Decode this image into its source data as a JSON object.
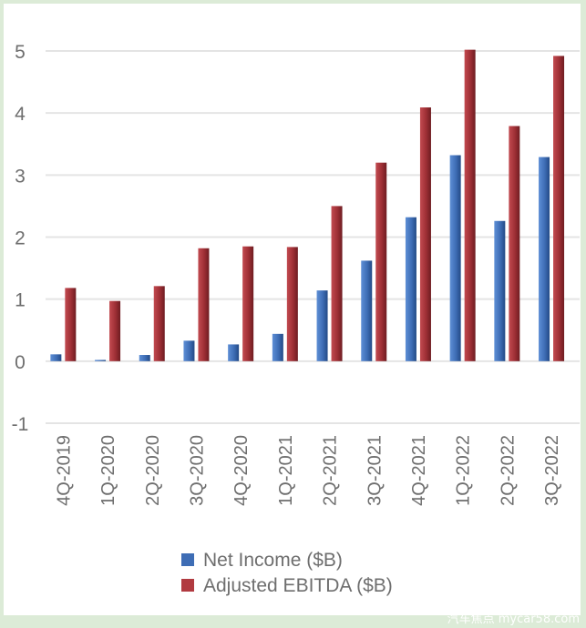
{
  "chart_data": {
    "type": "bar",
    "categories": [
      "4Q-2019",
      "1Q-2020",
      "2Q-2020",
      "3Q-2020",
      "4Q-2020",
      "1Q-2021",
      "2Q-2021",
      "3Q-2021",
      "4Q-2021",
      "1Q-2022",
      "2Q-2022",
      "3Q-2022"
    ],
    "series": [
      {
        "name": "Net Income ($B)",
        "values": [
          0.11,
          0.02,
          0.1,
          0.33,
          0.27,
          0.44,
          1.14,
          1.62,
          2.32,
          3.32,
          2.26,
          3.29
        ],
        "color": "#3e6db5"
      },
      {
        "name": "Adjusted EBITDA ($B)",
        "values": [
          1.18,
          0.97,
          1.21,
          1.82,
          1.85,
          1.84,
          2.5,
          3.2,
          4.09,
          5.02,
          3.79,
          4.92
        ],
        "color": "#9e2f35"
      }
    ],
    "yticks": [
      "-1",
      "0",
      "1",
      "2",
      "3",
      "4",
      "5"
    ],
    "ylim": [
      -1,
      5
    ],
    "grid": true,
    "legend_position": "bottom",
    "title": "",
    "xlabel": "",
    "ylabel": ""
  },
  "watermark": "汽车焦点 mycar58.com"
}
